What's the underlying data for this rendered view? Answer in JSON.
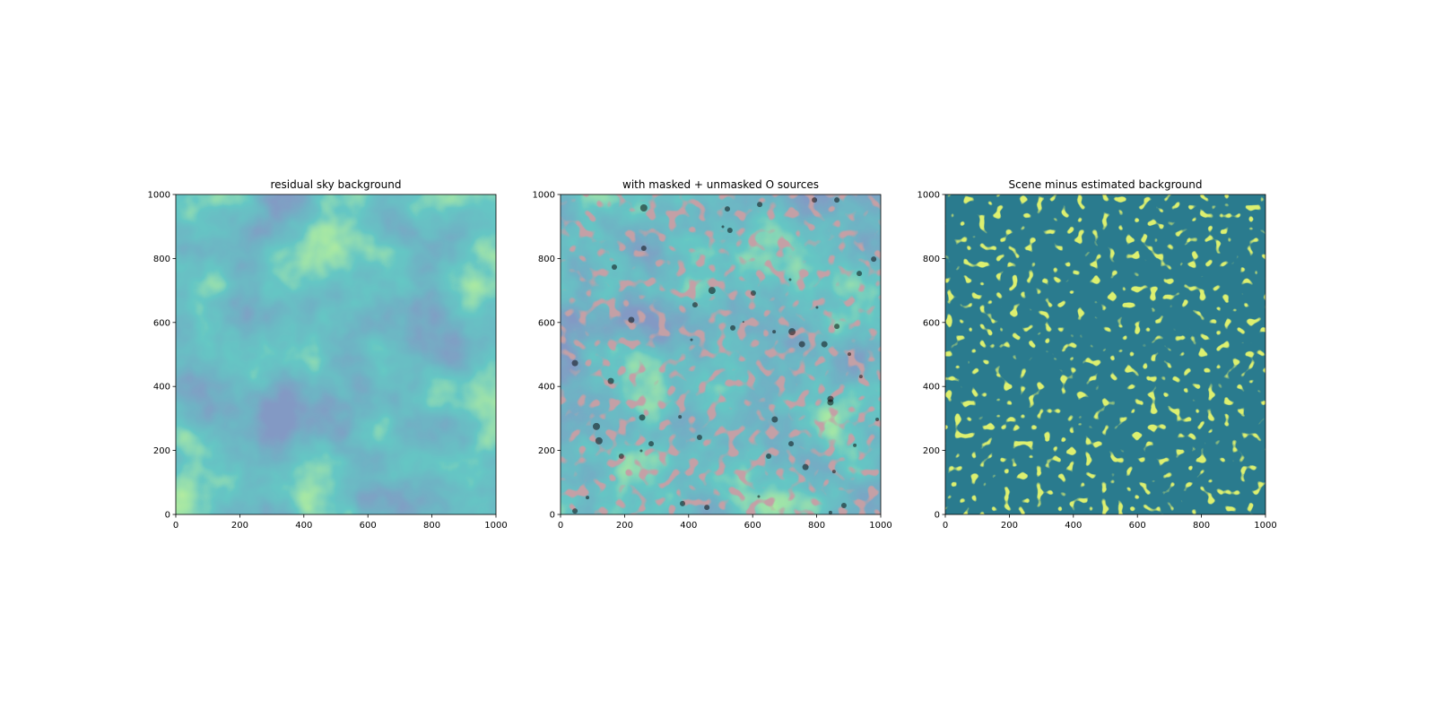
{
  "chart_data": [
    {
      "type": "image",
      "title": "residual sky background",
      "xlim": [
        0,
        1000
      ],
      "ylim": [
        0,
        1000
      ],
      "xticks": [
        0,
        200,
        400,
        600,
        800,
        1000
      ],
      "yticks": [
        0,
        200,
        400,
        600,
        800,
        1000
      ]
    },
    {
      "type": "scatter",
      "title": "with masked + unmasked O sources",
      "xlim": [
        0,
        1000
      ],
      "ylim": [
        0,
        1000
      ],
      "xticks": [
        0,
        200,
        400,
        600,
        800,
        1000
      ],
      "yticks": [
        0,
        200,
        400,
        600,
        800,
        1000
      ],
      "color": "#000000",
      "alpha": 0.5,
      "x": [
        260,
        521,
        622,
        793,
        863,
        507,
        529,
        168,
        260,
        978,
        933,
        717,
        473,
        602,
        420,
        801,
        221,
        571,
        538,
        863,
        667,
        723,
        409,
        754,
        824,
        902,
        45,
        938,
        157,
        843,
        843,
        255,
        373,
        669,
        989,
        112,
        120,
        434,
        283,
        720,
        919,
        252,
        190,
        650,
        765,
        854,
        84,
        619,
        381,
        457,
        885,
        843,
        45
      ],
      "y": [
        958,
        955,
        969,
        983,
        983,
        899,
        888,
        773,
        832,
        798,
        753,
        734,
        700,
        692,
        655,
        647,
        608,
        602,
        583,
        588,
        571,
        571,
        546,
        532,
        532,
        501,
        473,
        431,
        417,
        361,
        350,
        303,
        305,
        297,
        297,
        275,
        230,
        241,
        221,
        221,
        216,
        199,
        182,
        182,
        148,
        134,
        53,
        56,
        34,
        22,
        28,
        6,
        11
      ],
      "sizes": [
        4,
        3,
        3,
        3,
        3,
        1.5,
        3,
        3,
        3,
        3,
        3,
        1.5,
        4,
        3,
        3,
        1.5,
        3.5,
        1,
        3,
        3,
        2,
        4,
        1.5,
        3.5,
        3.5,
        2,
        3.5,
        2,
        3.5,
        3.5,
        3.5,
        3.5,
        2,
        3.5,
        2,
        4,
        4,
        3,
        3,
        3,
        2,
        1.5,
        3,
        3,
        3.5,
        2,
        2,
        1.5,
        3,
        3,
        3,
        2,
        3
      ]
    },
    {
      "type": "image",
      "title": "Scene minus estimated background",
      "xlim": [
        0,
        1000
      ],
      "ylim": [
        0,
        1000
      ],
      "xticks": [
        0,
        200,
        400,
        600,
        800,
        1000
      ],
      "yticks": [
        0,
        200,
        400,
        600,
        800,
        1000
      ]
    }
  ]
}
